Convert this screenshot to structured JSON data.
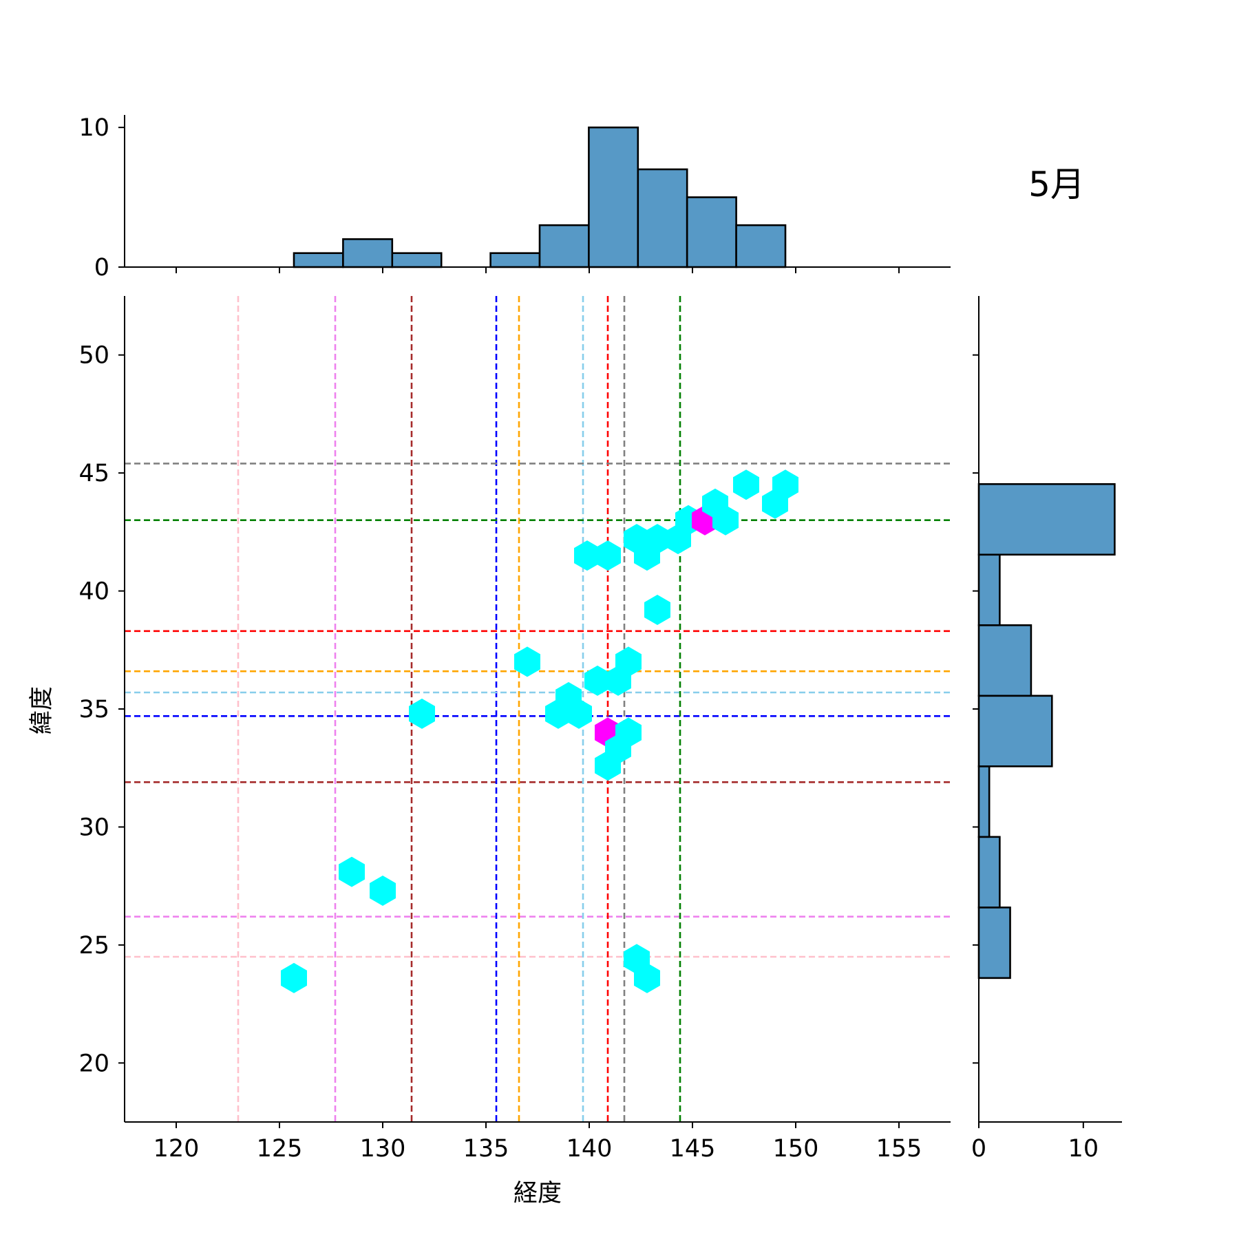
{
  "annotation": "5月",
  "colors": {
    "hist_fill": "#5799c6",
    "hist_edge": "#000000",
    "hex_low": "#00ffff",
    "hex_high": "#ff00ff"
  },
  "chart_data": {
    "type": "hexbin",
    "xlabel": "経度",
    "ylabel": "緯度",
    "xlim": [
      117.5,
      157.5
    ],
    "ylim": [
      17.5,
      52.5
    ],
    "x_ticks": [
      120,
      125,
      130,
      135,
      140,
      145,
      150,
      155
    ],
    "y_ticks": [
      20,
      25,
      30,
      35,
      40,
      45,
      50
    ],
    "hexbins": [
      {
        "x": 125.7,
        "y": 23.6,
        "count": 1
      },
      {
        "x": 128.5,
        "y": 28.1,
        "count": 1
      },
      {
        "x": 130.0,
        "y": 27.3,
        "count": 1
      },
      {
        "x": 131.9,
        "y": 34.8,
        "count": 1
      },
      {
        "x": 137.0,
        "y": 37.0,
        "count": 1
      },
      {
        "x": 138.5,
        "y": 34.8,
        "count": 1
      },
      {
        "x": 139.0,
        "y": 35.5,
        "count": 1
      },
      {
        "x": 139.5,
        "y": 34.8,
        "count": 1
      },
      {
        "x": 139.9,
        "y": 41.5,
        "count": 1
      },
      {
        "x": 140.4,
        "y": 36.2,
        "count": 1
      },
      {
        "x": 140.9,
        "y": 41.5,
        "count": 1
      },
      {
        "x": 140.9,
        "y": 34.0,
        "count": 2
      },
      {
        "x": 140.9,
        "y": 32.6,
        "count": 1
      },
      {
        "x": 141.4,
        "y": 36.2,
        "count": 1
      },
      {
        "x": 141.4,
        "y": 33.3,
        "count": 1
      },
      {
        "x": 141.9,
        "y": 37.0,
        "count": 1
      },
      {
        "x": 141.9,
        "y": 34.0,
        "count": 1
      },
      {
        "x": 142.3,
        "y": 42.2,
        "count": 1
      },
      {
        "x": 142.3,
        "y": 24.4,
        "count": 1
      },
      {
        "x": 142.8,
        "y": 41.5,
        "count": 1
      },
      {
        "x": 142.8,
        "y": 23.6,
        "count": 1
      },
      {
        "x": 143.3,
        "y": 42.2,
        "count": 1
      },
      {
        "x": 143.3,
        "y": 39.2,
        "count": 1
      },
      {
        "x": 144.3,
        "y": 42.2,
        "count": 1
      },
      {
        "x": 144.8,
        "y": 43.0,
        "count": 1
      },
      {
        "x": 145.6,
        "y": 43.0,
        "count": 2
      },
      {
        "x": 146.1,
        "y": 43.7,
        "count": 1
      },
      {
        "x": 146.6,
        "y": 43.0,
        "count": 1
      },
      {
        "x": 147.6,
        "y": 44.5,
        "count": 1
      },
      {
        "x": 149.0,
        "y": 43.7,
        "count": 1
      },
      {
        "x": 149.5,
        "y": 44.5,
        "count": 1
      }
    ],
    "reference_lines": [
      {
        "color": "pink",
        "lon": 123.0,
        "lat": 24.5
      },
      {
        "color": "violet",
        "lon": 127.7,
        "lat": 26.2
      },
      {
        "color": "brown",
        "lon": 131.4,
        "lat": 31.9
      },
      {
        "color": "blue",
        "lon": 135.5,
        "lat": 34.7
      },
      {
        "color": "orange",
        "lon": 136.6,
        "lat": 36.6
      },
      {
        "color": "skyblue",
        "lon": 139.7,
        "lat": 35.7
      },
      {
        "color": "red",
        "lon": 140.9,
        "lat": 38.3
      },
      {
        "color": "gray",
        "lon": 141.7,
        "lat": 45.4
      },
      {
        "color": "green",
        "lon": 144.4,
        "lat": 43.0
      }
    ],
    "top_histogram": {
      "bin_edges": [
        125.7,
        128.08,
        130.46,
        132.84,
        135.22,
        137.6,
        139.98,
        142.36,
        144.74,
        147.12,
        149.5
      ],
      "counts": [
        1,
        2,
        1,
        0,
        1,
        3,
        10,
        7,
        5,
        3
      ],
      "ylim": [
        0,
        10.5
      ],
      "ticks": [
        0,
        10
      ]
    },
    "right_histogram": {
      "bin_edges": [
        23.6,
        26.59,
        29.58,
        32.57,
        35.56,
        38.55,
        41.54,
        44.53
      ],
      "counts": [
        3,
        2,
        1,
        7,
        5,
        2,
        13
      ],
      "xlim": [
        0,
        13.7
      ],
      "ticks": [
        0,
        10
      ]
    }
  }
}
